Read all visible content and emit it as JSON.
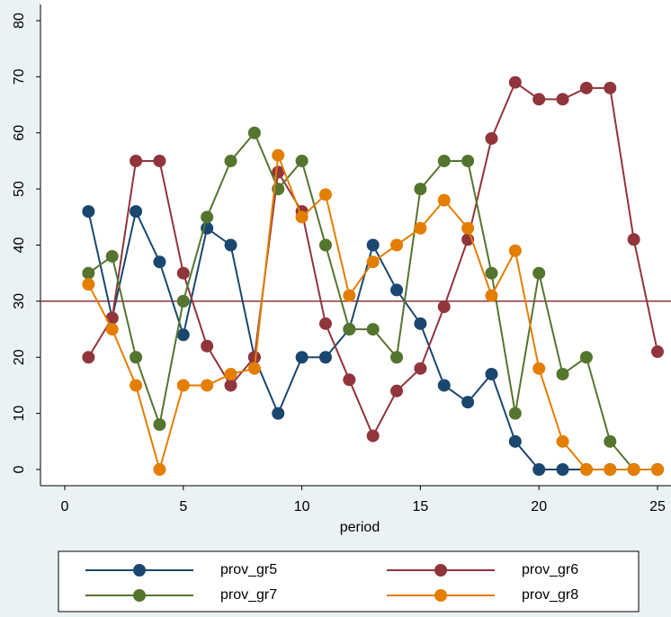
{
  "chart_data": {
    "type": "line",
    "x_label": "period",
    "x": [
      1,
      2,
      3,
      4,
      5,
      6,
      7,
      8,
      9,
      10,
      11,
      12,
      13,
      14,
      15,
      16,
      17,
      18,
      19,
      20,
      21,
      22,
      23,
      24,
      25
    ],
    "series": [
      {
        "name": "prov_gr5",
        "color": "#1a476f",
        "values": [
          46,
          27,
          46,
          37,
          24,
          43,
          40,
          20,
          10,
          20,
          20,
          25,
          40,
          32,
          26,
          15,
          12,
          17,
          5,
          0,
          0,
          0,
          0,
          0,
          0
        ]
      },
      {
        "name": "prov_gr6",
        "color": "#90353b",
        "values": [
          20,
          27,
          55,
          55,
          35,
          22,
          15,
          20,
          53,
          46,
          26,
          16,
          6,
          14,
          18,
          29,
          41,
          59,
          69,
          66,
          66,
          68,
          68,
          41,
          21
        ]
      },
      {
        "name": "prov_gr7",
        "color": "#55752f",
        "values": [
          35,
          38,
          20,
          8,
          30,
          45,
          55,
          60,
          50,
          55,
          40,
          25,
          25,
          20,
          50,
          55,
          55,
          35,
          10,
          35,
          17,
          20,
          5,
          0,
          0
        ]
      },
      {
        "name": "prov_gr8",
        "color": "#e37e00",
        "values": [
          33,
          25,
          15,
          0,
          15,
          15,
          17,
          18,
          56,
          45,
          49,
          31,
          37,
          40,
          43,
          48,
          43,
          31,
          39,
          18,
          5,
          0,
          0,
          0,
          0
        ]
      }
    ],
    "xlim": [
      0,
      25
    ],
    "xticks": [
      0,
      5,
      10,
      15,
      20,
      25
    ],
    "ylim": [
      0,
      80
    ],
    "yticks": [
      0,
      10,
      20,
      30,
      40,
      50,
      60,
      70,
      80
    ],
    "yline": 30,
    "yline_color": "#90353b",
    "legend": "bottom"
  }
}
